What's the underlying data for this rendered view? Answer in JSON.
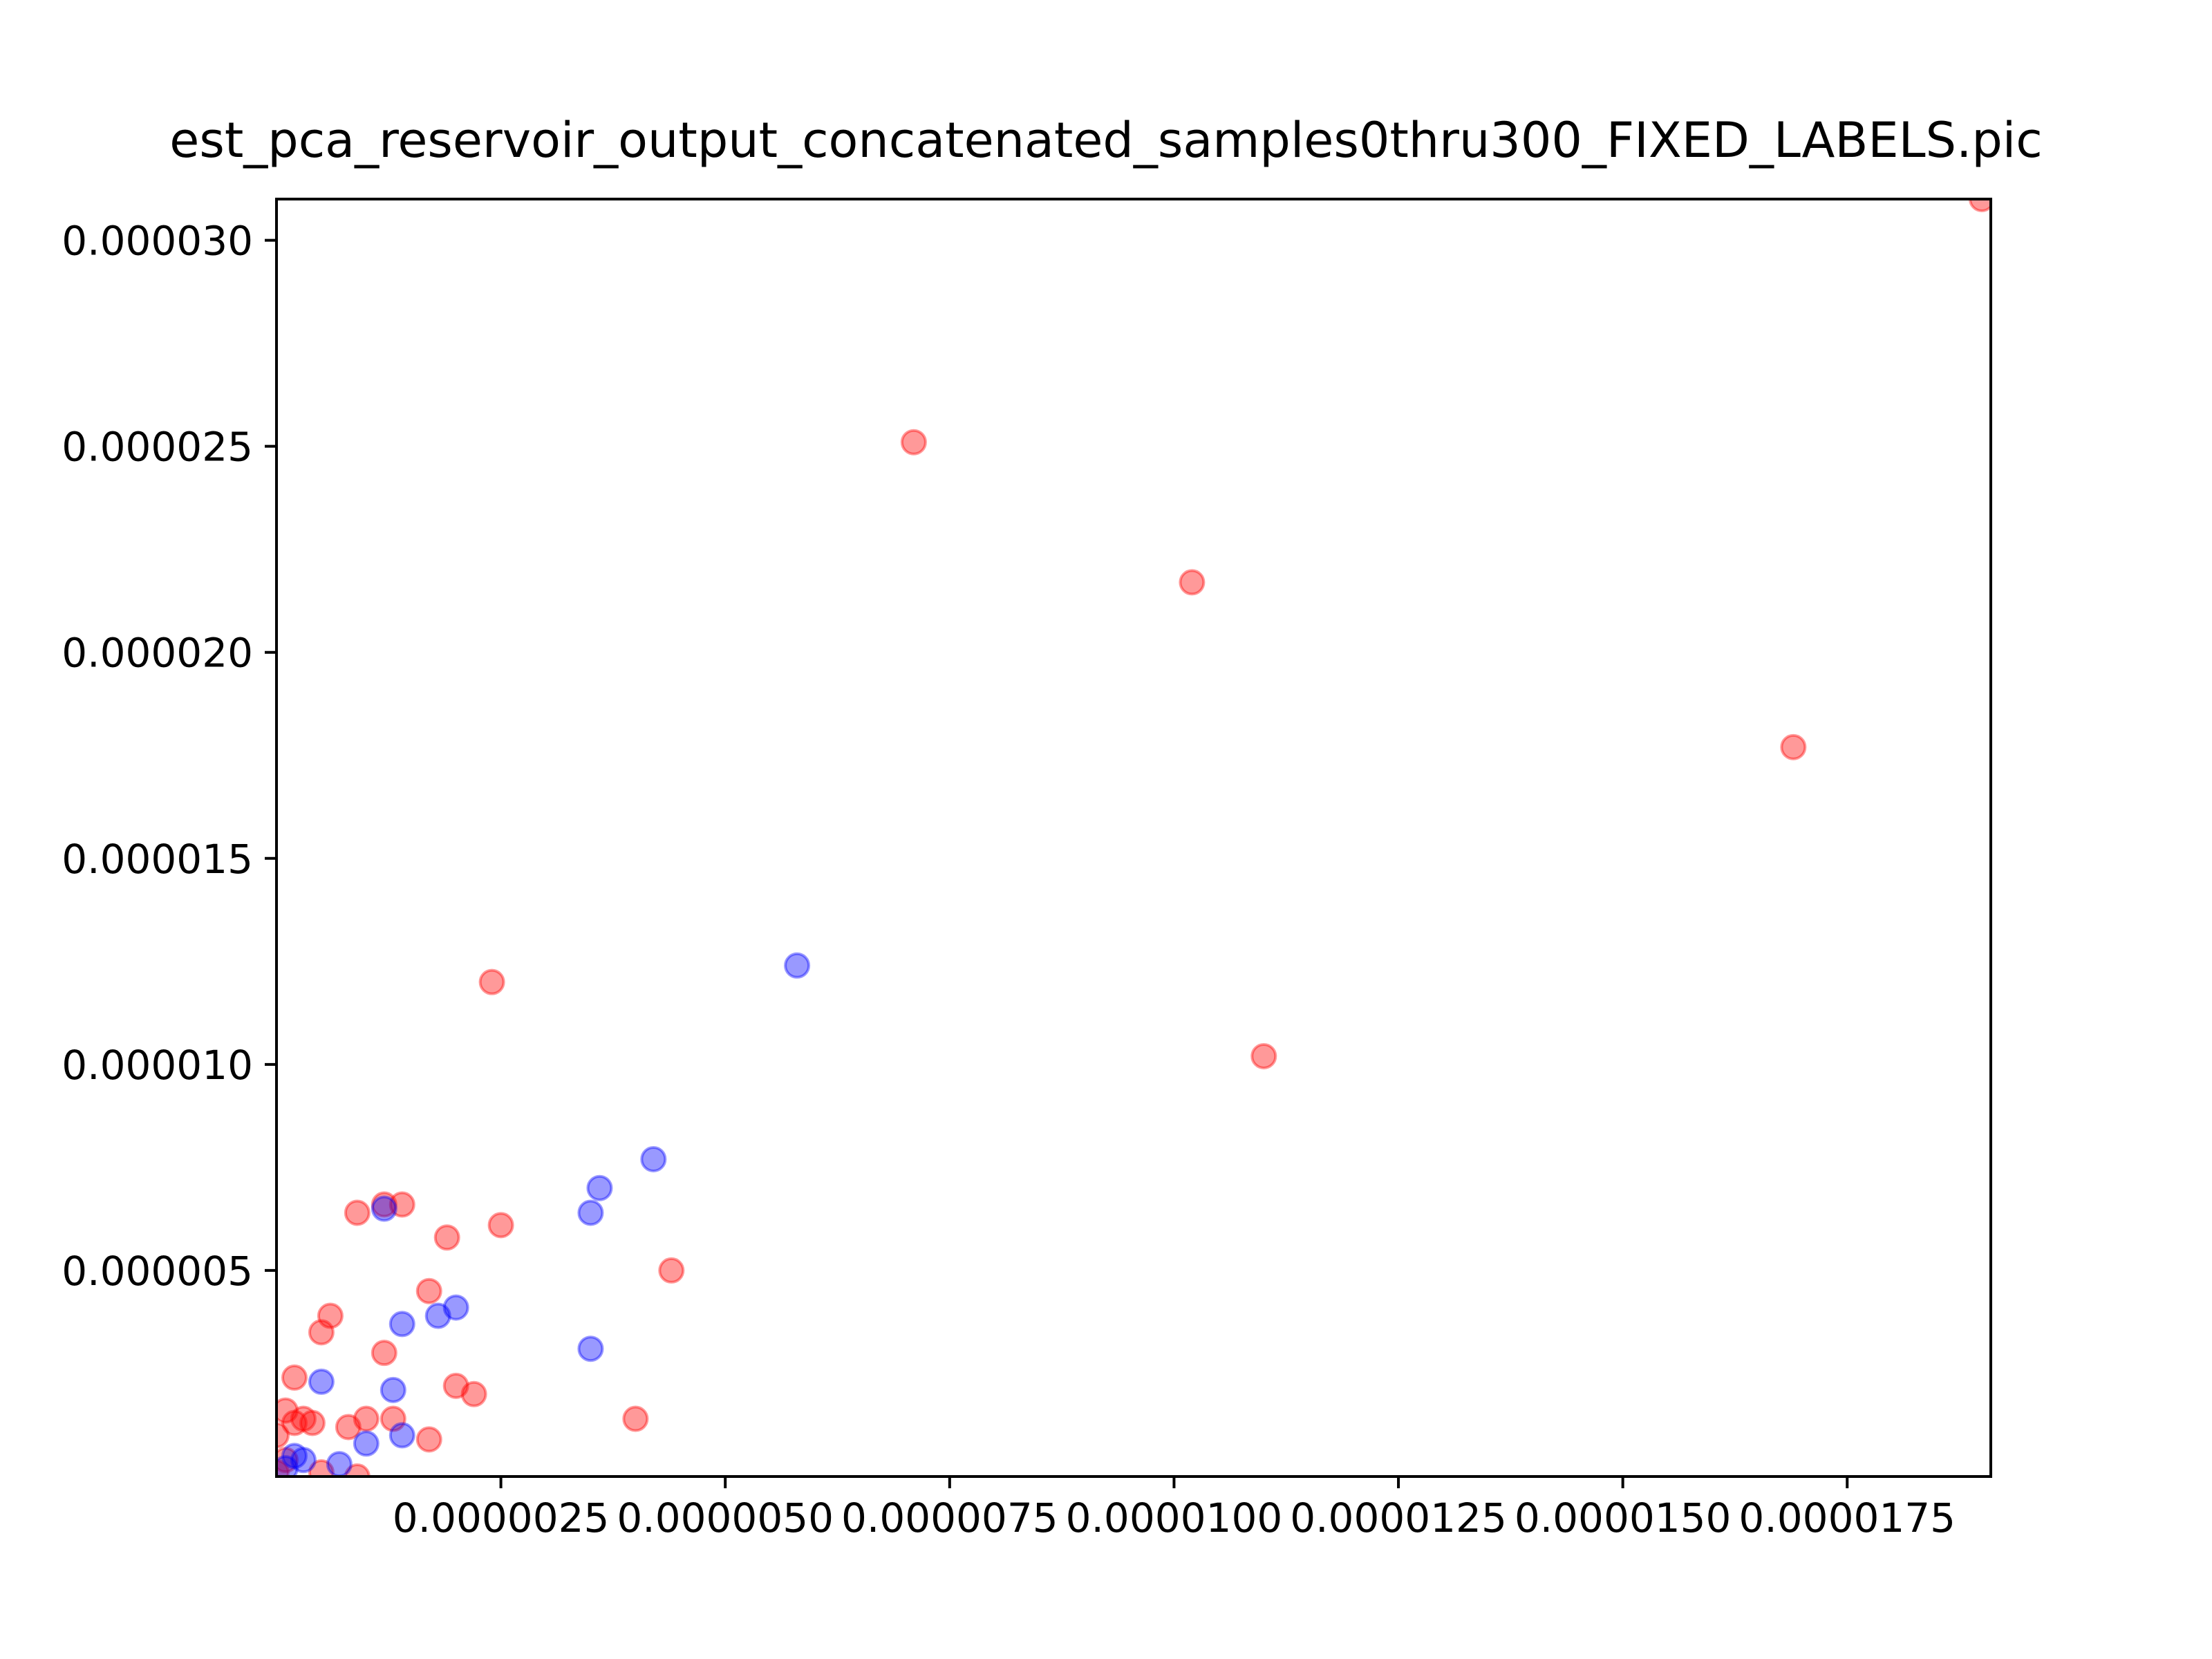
{
  "title": "est_pca_reservoir_output_concatenated_samples0thru300_FIXED_LABELS.pic",
  "chart_data": {
    "type": "scatter",
    "title": "est_pca_reservoir_output_concatenated_samples0thru300_FIXED_LABELS.pic",
    "xlabel": "",
    "ylabel": "",
    "xlim": [
      0.0,
      1.91e-05
    ],
    "ylim": [
      0.0,
      3.1e-05
    ],
    "grid": false,
    "legend": "none",
    "xticks": [
      2.5e-06,
      5e-06,
      7.5e-06,
      1e-05,
      1.25e-05,
      1.5e-05,
      1.75e-05
    ],
    "xtick_labels": [
      "0.0000025",
      "0.0000050",
      "0.0000075",
      "0.0000100",
      "0.0000125",
      "0.0000150",
      "0.0000175"
    ],
    "yticks": [
      5e-06,
      1e-05,
      1.5e-05,
      2e-05,
      2.5e-05,
      3e-05
    ],
    "ytick_labels": [
      "0.000005",
      "0.000010",
      "0.000015",
      "0.000020",
      "0.000025",
      "0.000030"
    ],
    "colors": {
      "series_red": "#ff0000",
      "series_blue": "#0000ff"
    },
    "series": [
      {
        "color": "#ff0000",
        "points": [
          [
            1.9e-05,
            3.1e-05
          ],
          [
            7.1e-06,
            2.51e-05
          ],
          [
            1.02e-05,
            2.17e-05
          ],
          [
            1.69e-05,
            1.77e-05
          ],
          [
            2.4e-06,
            1.2e-05
          ],
          [
            1.1e-05,
            1.02e-05
          ],
          [
            9e-07,
            6.4e-06
          ],
          [
            1.2e-06,
            6.6e-06
          ],
          [
            1.4e-06,
            6.6e-06
          ],
          [
            2.5e-06,
            6.1e-06
          ],
          [
            1.9e-06,
            5.8e-06
          ],
          [
            4.4e-06,
            5e-06
          ],
          [
            1.7e-06,
            4.5e-06
          ],
          [
            6e-07,
            3.9e-06
          ],
          [
            5e-07,
            3.5e-06
          ],
          [
            1.2e-06,
            3e-06
          ],
          [
            2e-07,
            2.4e-06
          ],
          [
            2e-06,
            2.2e-06
          ],
          [
            2.2e-06,
            2e-06
          ],
          [
            4e-06,
            1.4e-06
          ],
          [
            1e-06,
            1.4e-06
          ],
          [
            1.3e-06,
            1.4e-06
          ],
          [
            8e-07,
            1.2e-06
          ],
          [
            1.7e-06,
            9e-07
          ],
          [
            1e-07,
            1.6e-06
          ],
          [
            3e-07,
            1.4e-06
          ],
          [
            4e-07,
            1.3e-06
          ],
          [
            2e-07,
            1.3e-06
          ],
          [
            0.0,
            1e-06
          ],
          [
            1e-07,
            4e-07
          ],
          [
            5e-07,
            1e-07
          ],
          [
            9e-07,
            0.0
          ],
          [
            0.0,
            1e-07
          ]
        ]
      },
      {
        "color": "#0000ff",
        "points": [
          [
            5.8e-06,
            1.24e-05
          ],
          [
            4.2e-06,
            7.7e-06
          ],
          [
            3.6e-06,
            7e-06
          ],
          [
            3.5e-06,
            6.4e-06
          ],
          [
            1.2e-06,
            6.5e-06
          ],
          [
            2e-06,
            4.1e-06
          ],
          [
            1.8e-06,
            3.9e-06
          ],
          [
            1.4e-06,
            3.7e-06
          ],
          [
            3.5e-06,
            3.1e-06
          ],
          [
            5e-07,
            2.3e-06
          ],
          [
            1.3e-06,
            2.1e-06
          ],
          [
            1.4e-06,
            1e-06
          ],
          [
            1e-06,
            8e-07
          ],
          [
            2e-07,
            5e-07
          ],
          [
            3e-07,
            4e-07
          ],
          [
            7e-07,
            3e-07
          ],
          [
            1e-07,
            2e-07
          ]
        ]
      }
    ]
  }
}
